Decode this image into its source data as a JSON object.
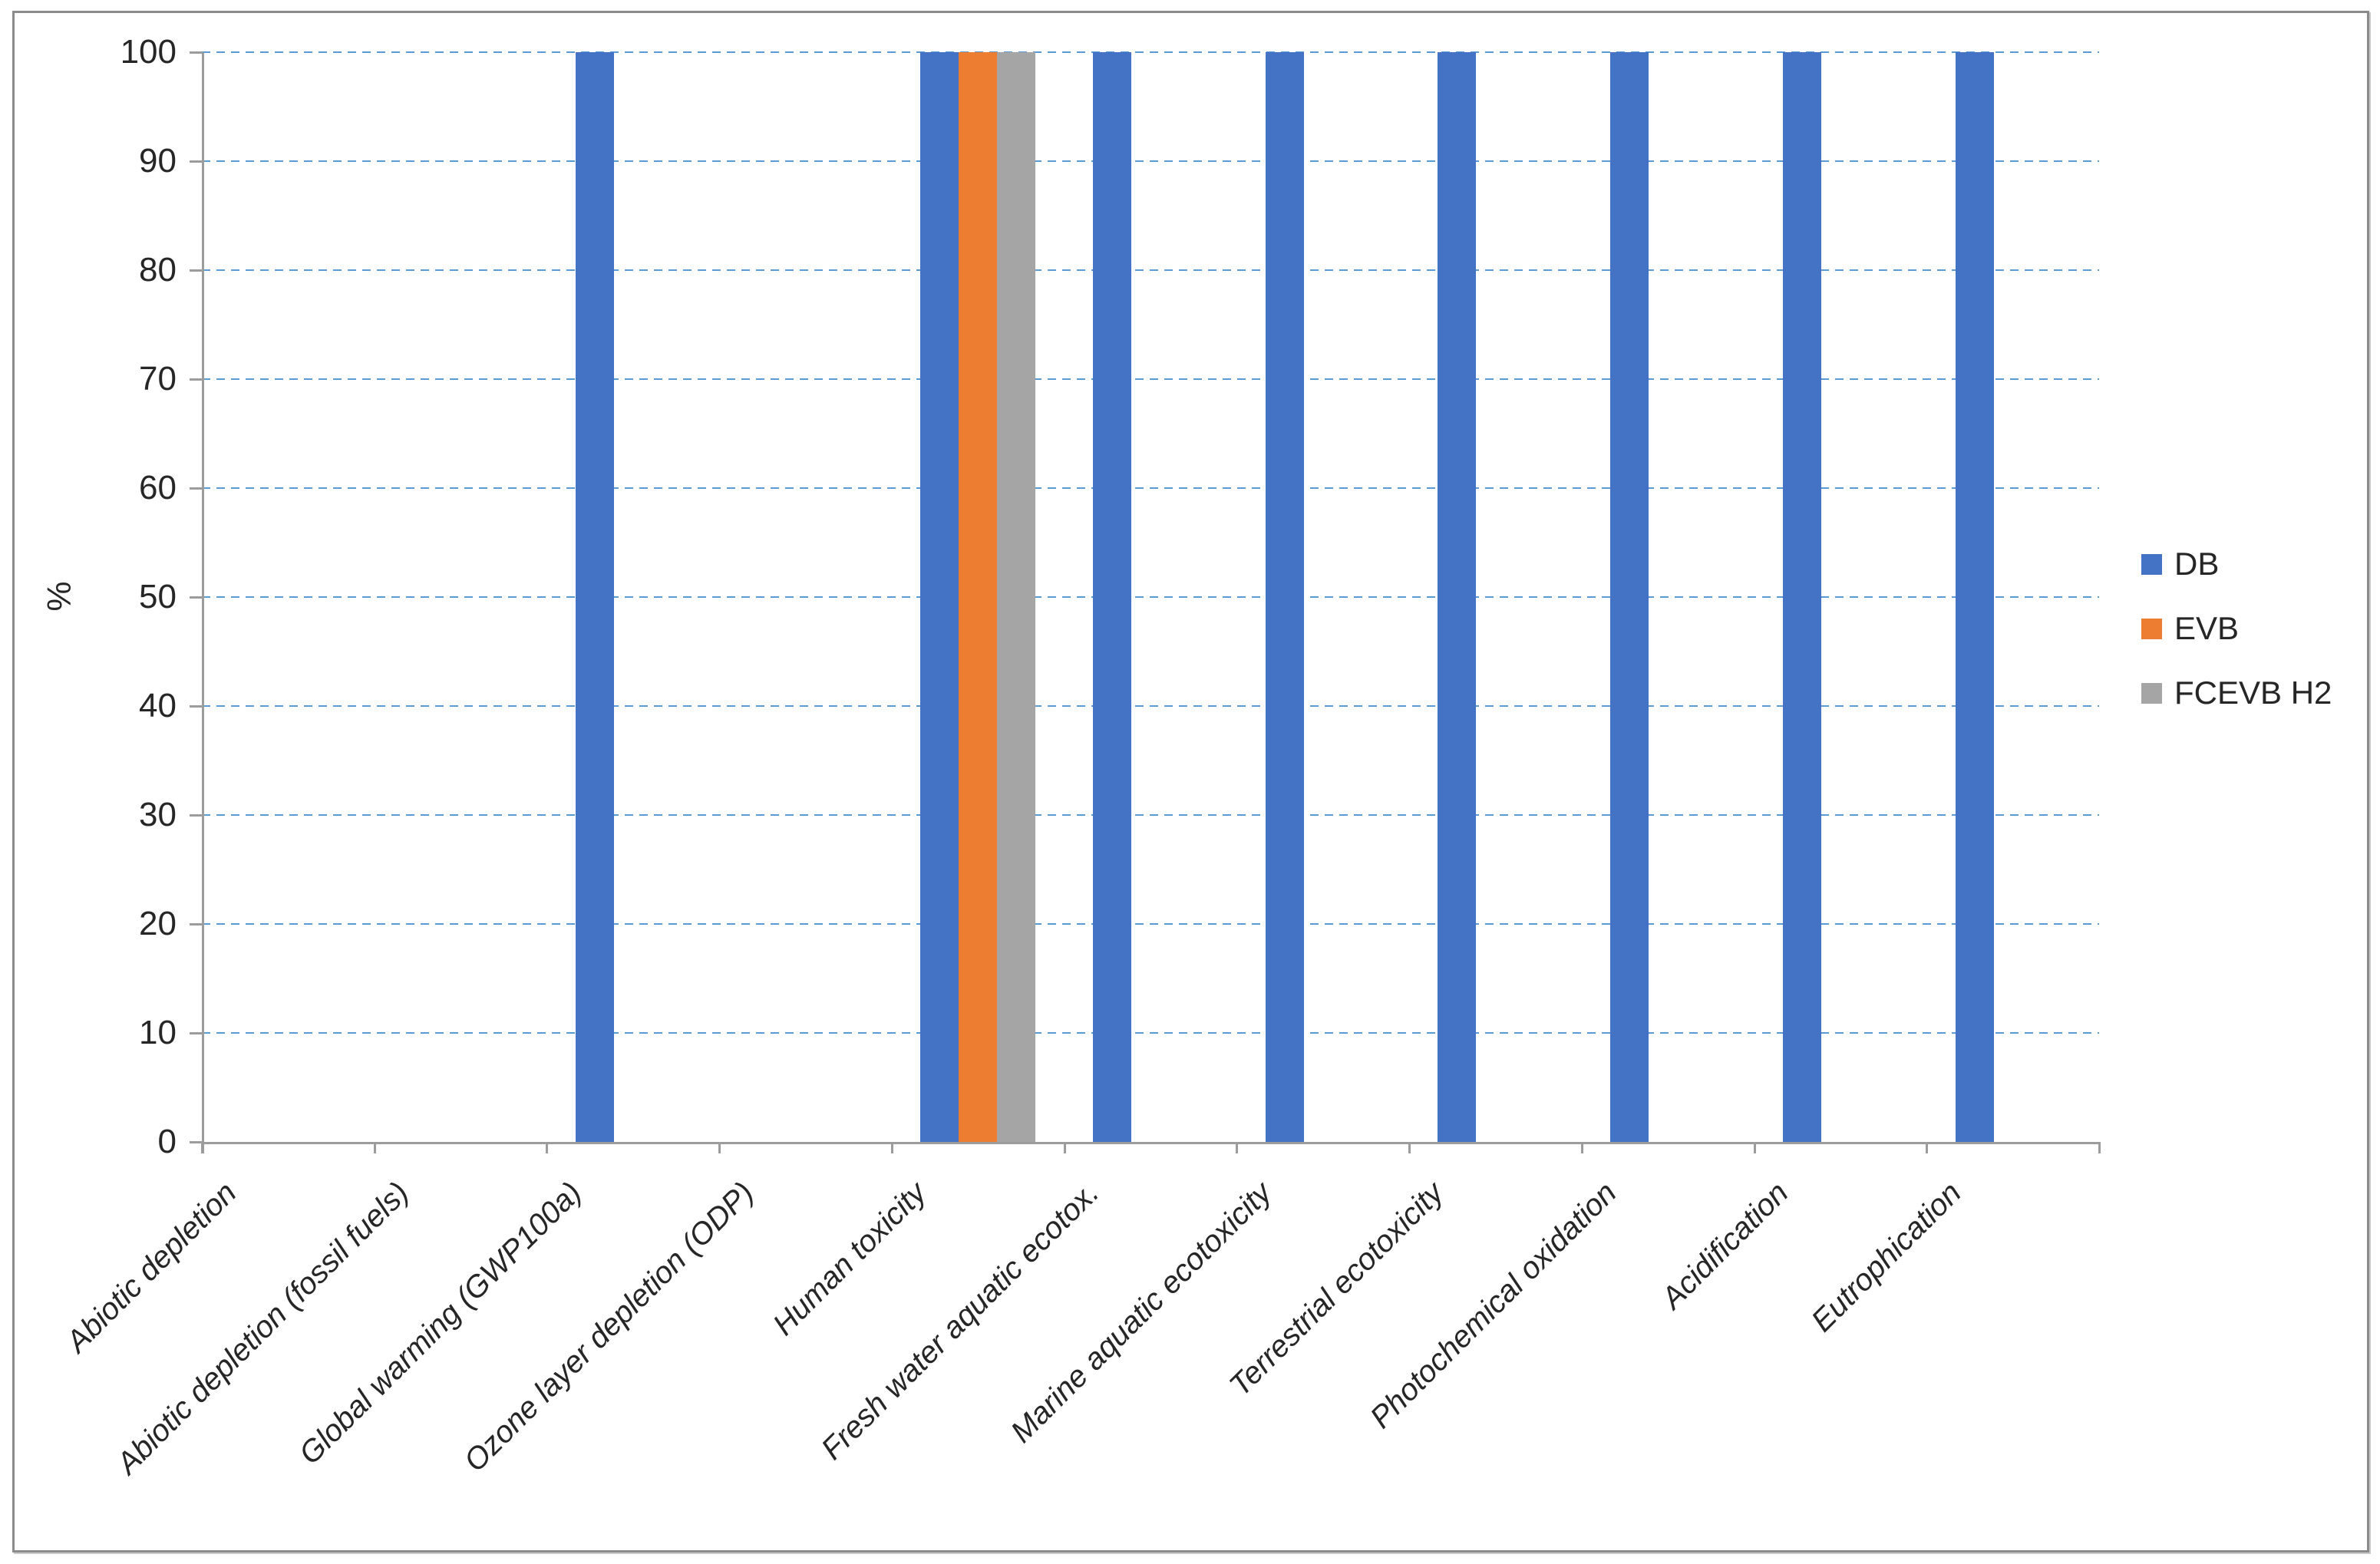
{
  "chart_data": {
    "type": "bar",
    "title": "",
    "ylabel": "%",
    "ylim": [
      0,
      100
    ],
    "ytick_step": 10,
    "ytick_labels": [
      "0",
      "10",
      "20",
      "30",
      "40",
      "50",
      "60",
      "70",
      "80",
      "90",
      "100"
    ],
    "categories": [
      "Abiotic depletion",
      "Abiotic depletion (fossil fuels)",
      "Global warming (GWP100a)",
      "Ozone layer depletion (ODP)",
      "Human toxicity",
      "Fresh water aquatic ecotox.",
      "Marine aquatic ecotoxicity",
      "Terrestrial ecotoxicity",
      "Photochemical oxidation",
      "Acidification",
      "Eutrophication"
    ],
    "series": [
      {
        "name": "DB",
        "color": "#4472C4",
        "values": [
          0,
          0,
          100,
          0,
          100,
          100,
          100,
          100,
          100,
          100,
          100
        ]
      },
      {
        "name": "EVB",
        "color": "#ED7D31",
        "values": [
          0,
          0,
          0,
          0,
          100,
          0,
          0,
          0,
          0,
          0,
          0
        ]
      },
      {
        "name": "FCEVB H2",
        "color": "#A5A5A5",
        "values": [
          0,
          0,
          0,
          0,
          100,
          0,
          0,
          0,
          0,
          0,
          0
        ]
      }
    ],
    "legend_position": "right",
    "grid": "horizontal-dashed",
    "colors": {
      "gridline": "#5B9BD5",
      "axis": "#9C9C9C",
      "text": "#262626",
      "frame_border": "#8B8B8B",
      "background": "#FFFFFF"
    }
  }
}
